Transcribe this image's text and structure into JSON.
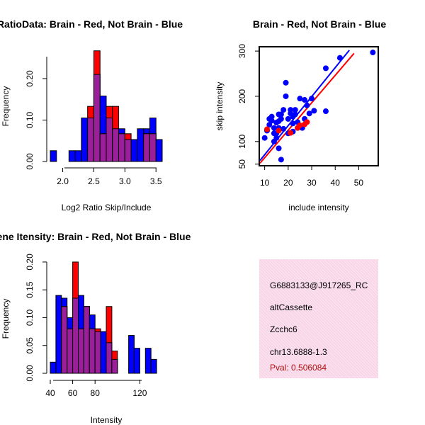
{
  "colors": {
    "brain": "#ff0000",
    "not_brain": "#0000ff",
    "overlap": "#9b1f9b",
    "pval_text": "#b01010",
    "info_bg": "#f8d6e8"
  },
  "chart_data": [
    {
      "type": "bar",
      "id": "ratio-hist",
      "title": "RatioData: Brain - Red, Not Brain - Blue",
      "xlabel": "Log2 Ratio Skip/Include",
      "ylabel": "Frequency",
      "xlim": [
        1.8,
        3.6
      ],
      "ylim": [
        0,
        0.27
      ],
      "xticks": [
        "2.0",
        "2.5",
        "3.0",
        "3.5"
      ],
      "xtick_values": [
        2.0,
        2.5,
        3.0,
        3.5
      ],
      "yticks": [
        "0.00",
        "0.10",
        "0.20"
      ],
      "ytick_values": [
        0.0,
        0.1,
        0.2
      ],
      "bin_width": 0.1,
      "bins_start": [
        1.8,
        1.9,
        2.0,
        2.1,
        2.2,
        2.3,
        2.4,
        2.5,
        2.6,
        2.7,
        2.8,
        2.9,
        3.0,
        3.1,
        3.2,
        3.3,
        3.4,
        3.5
      ],
      "series": [
        {
          "name": "Not Brain",
          "values": [
            0.026,
            0,
            0,
            0.026,
            0.026,
            0.105,
            0.105,
            0.21,
            0.158,
            0.105,
            0.079,
            0.079,
            0.053,
            0.053,
            0.079,
            0.079,
            0.105,
            0.053
          ]
        },
        {
          "name": "Brain",
          "values": [
            0,
            0,
            0,
            0,
            0,
            0,
            0.133,
            0.267,
            0.067,
            0.133,
            0.133,
            0.067,
            0.067,
            0,
            0,
            0.067,
            0.067,
            0
          ]
        }
      ]
    },
    {
      "type": "scatter",
      "id": "skip-include-scatter",
      "title": "Brain - Red, Not Brain - Blue",
      "xlabel": "include intensity",
      "ylabel": "skip intensity",
      "xlim": [
        8,
        58
      ],
      "ylim": [
        48,
        308
      ],
      "xticks": [
        "10",
        "20",
        "30",
        "40",
        "50"
      ],
      "xtick_values": [
        10,
        20,
        30,
        40,
        50
      ],
      "yticks": [
        "50",
        "100",
        "200",
        "300"
      ],
      "ytick_values": [
        50,
        100,
        200,
        300
      ],
      "series": [
        {
          "name": "Not Brain",
          "points": [
            [
              10,
              108
            ],
            [
              11,
              124
            ],
            [
              12,
              137
            ],
            [
              12,
              150
            ],
            [
              13,
              155
            ],
            [
              13,
              146
            ],
            [
              14,
              130
            ],
            [
              14,
              118
            ],
            [
              14,
              100
            ],
            [
              15,
              142
            ],
            [
              15,
              118
            ],
            [
              15,
              108
            ],
            [
              16,
              160
            ],
            [
              16,
              145
            ],
            [
              16,
              130
            ],
            [
              16,
              85
            ],
            [
              17,
              160
            ],
            [
              17,
              150
            ],
            [
              17,
              60
            ],
            [
              18,
              170
            ],
            [
              18,
              128
            ],
            [
              19,
              200
            ],
            [
              19,
              230
            ],
            [
              20,
              118
            ],
            [
              20,
              150
            ],
            [
              21,
              170
            ],
            [
              21,
              162
            ],
            [
              22,
              155
            ],
            [
              22,
              140
            ],
            [
              22,
              122
            ],
            [
              23,
              170
            ],
            [
              23,
              160
            ],
            [
              24,
              143
            ],
            [
              24,
              130
            ],
            [
              25,
              195
            ],
            [
              26,
              130
            ],
            [
              27,
              192
            ],
            [
              27,
              150
            ],
            [
              28,
              180
            ],
            [
              29,
              162
            ],
            [
              31,
              168
            ],
            [
              30,
              195
            ],
            [
              36,
              167
            ],
            [
              36,
              262
            ],
            [
              42,
              285
            ],
            [
              56,
              297
            ]
          ]
        },
        {
          "name": "Brain",
          "points": [
            [
              11,
              127
            ],
            [
              16,
              124
            ],
            [
              21,
              119
            ],
            [
              24,
              130
            ],
            [
              25,
              136
            ],
            [
              27,
              138
            ],
            [
              28,
              143
            ]
          ]
        }
      ],
      "fit_lines": [
        {
          "name": "Brain",
          "from": [
            8,
            52
          ],
          "to": [
            48,
            295
          ]
        },
        {
          "name": "Not Brain",
          "from": [
            8,
            58
          ],
          "to": [
            46,
            302
          ]
        }
      ]
    },
    {
      "type": "bar",
      "id": "intensity-hist",
      "title": "Gene Itensity: Brain - Red, Not Brain - Blue",
      "xlabel": "Intensity",
      "ylabel": "Frequency",
      "xlim": [
        40,
        140
      ],
      "ylim": [
        0,
        0.205
      ],
      "xticks": [
        "40",
        "60",
        "80",
        "120"
      ],
      "xtick_values": [
        40,
        60,
        80,
        120
      ],
      "yticks": [
        "0.00",
        "0.05",
        "0.10",
        "0.15",
        "0.20"
      ],
      "ytick_values": [
        0.0,
        0.05,
        0.1,
        0.15,
        0.2
      ],
      "bin_width": 5,
      "bins_start": [
        40,
        45,
        50,
        55,
        60,
        65,
        70,
        75,
        80,
        85,
        90,
        95,
        100,
        105,
        110,
        115,
        120,
        125,
        130,
        135
      ],
      "series": [
        {
          "name": "Not Brain",
          "values": [
            0.02,
            0.14,
            0.135,
            0.1,
            0.135,
            0.14,
            0.12,
            0.105,
            0.075,
            0.075,
            0.055,
            0.025,
            0,
            0,
            0.068,
            0.045,
            0,
            0.045,
            0.025,
            0
          ]
        },
        {
          "name": "Brain",
          "values": [
            0,
            0,
            0.12,
            0.08,
            0.2,
            0.08,
            0.12,
            0.08,
            0.08,
            0,
            0.12,
            0.04,
            0,
            0,
            0,
            0,
            0,
            0,
            0,
            0
          ]
        }
      ]
    }
  ],
  "info": {
    "probe_id": "G6883133@J917265_RC",
    "event_type": "altCassette",
    "gene": "Zcchc6",
    "location": "chr13.6888-1.3",
    "pval": "Pval: 0.506084"
  }
}
